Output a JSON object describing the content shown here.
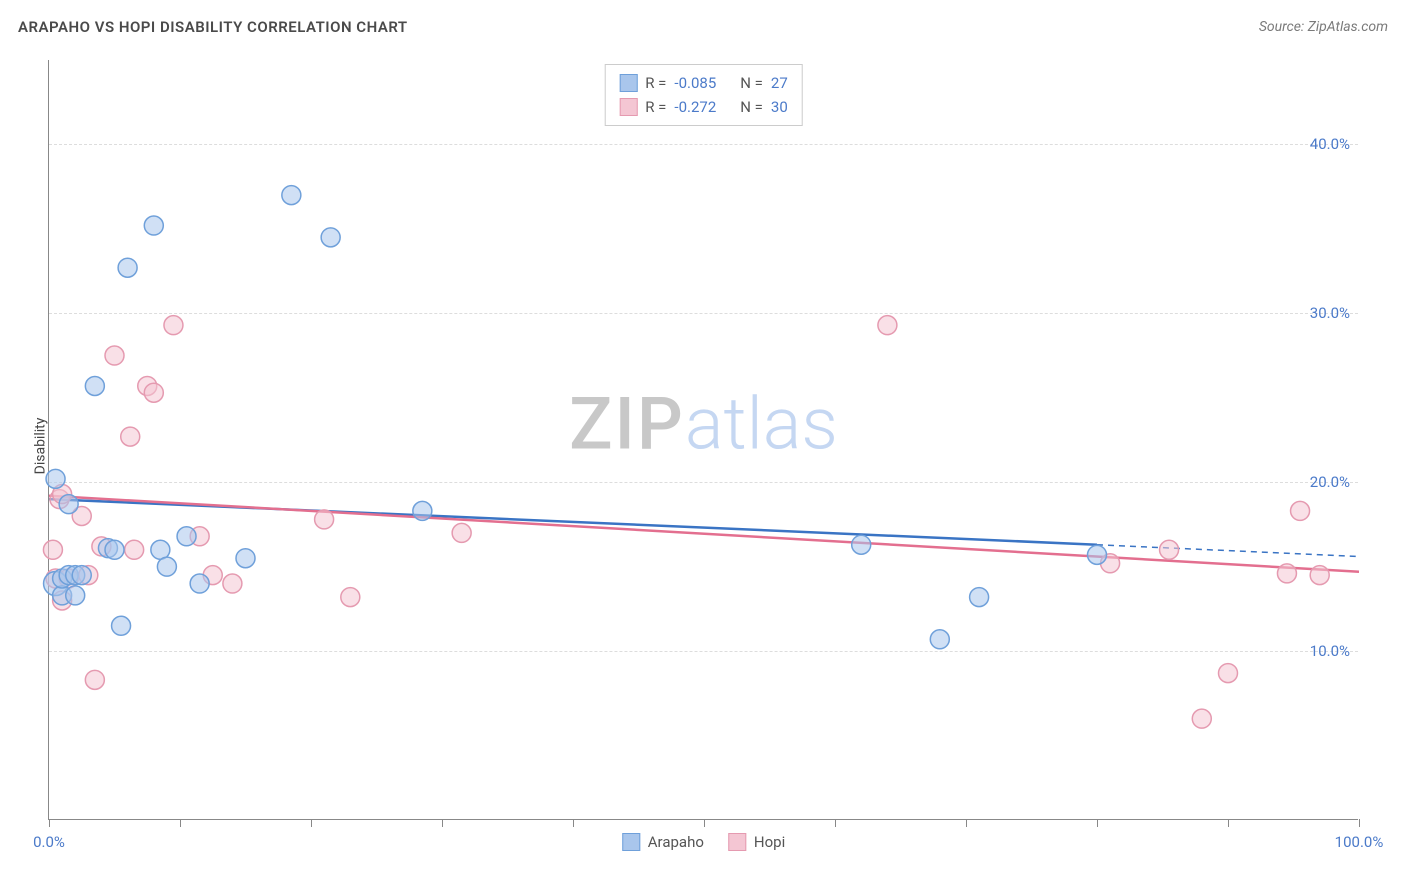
{
  "header": {
    "title": "ARAPAHO VS HOPI DISABILITY CORRELATION CHART",
    "source": "Source: ZipAtlas.com"
  },
  "ylabel": "Disability",
  "watermark": {
    "zip": "ZIP",
    "atlas": "atlas"
  },
  "colors": {
    "series_a_fill": "#a9c6ec",
    "series_a_stroke": "#6fa0da",
    "series_a_line": "#3a74c4",
    "series_b_fill": "#f4c6d3",
    "series_b_stroke": "#e59ab0",
    "series_b_line": "#e36f8f",
    "grid": "#dddddd",
    "axis": "#888888",
    "tick_text": "#4b7ac9",
    "text": "#555555",
    "bg": "#ffffff"
  },
  "chart": {
    "type": "scatter",
    "xlim": [
      0,
      100
    ],
    "ylim": [
      0,
      45
    ],
    "xtick_positions": [
      0,
      10,
      20,
      30,
      40,
      50,
      60,
      70,
      80,
      90,
      100
    ],
    "xtick_labels": {
      "0": "0.0%",
      "100": "100.0%"
    },
    "yticks": [
      10,
      20,
      30,
      40
    ],
    "ytick_labels": {
      "10": "10.0%",
      "20": "20.0%",
      "30": "30.0%",
      "40": "40.0%"
    },
    "marker_radius": 9.5,
    "marker_radius_large": 12,
    "line_width": 2.5,
    "dash_pattern": "6,5"
  },
  "legend_top": {
    "rows": [
      {
        "swatch": "a",
        "r_label": "R =",
        "r": "-0.085",
        "n_label": "N =",
        "n": "27"
      },
      {
        "swatch": "b",
        "r_label": "R =",
        "r": "-0.272",
        "n_label": "N =",
        "n": "30"
      }
    ]
  },
  "legend_bottom": {
    "items": [
      {
        "swatch": "a",
        "label": "Arapaho"
      },
      {
        "swatch": "b",
        "label": "Hopi"
      }
    ]
  },
  "series_a": {
    "name": "Arapaho",
    "trend": {
      "x1": 0,
      "y1": 19.0,
      "x2": 80,
      "y2": 16.3,
      "x2_ext": 100,
      "y2_ext": 15.6
    },
    "points": [
      {
        "x": 0.5,
        "y": 20.2
      },
      {
        "x": 0.5,
        "y": 14.0,
        "large": true
      },
      {
        "x": 1.0,
        "y": 13.3
      },
      {
        "x": 1.0,
        "y": 14.3
      },
      {
        "x": 1.5,
        "y": 18.7
      },
      {
        "x": 1.5,
        "y": 14.5
      },
      {
        "x": 2.0,
        "y": 14.5
      },
      {
        "x": 2.0,
        "y": 13.3
      },
      {
        "x": 2.5,
        "y": 14.5
      },
      {
        "x": 3.5,
        "y": 25.7
      },
      {
        "x": 4.5,
        "y": 16.1
      },
      {
        "x": 5.0,
        "y": 16.0
      },
      {
        "x": 5.5,
        "y": 11.5
      },
      {
        "x": 6.0,
        "y": 32.7
      },
      {
        "x": 8.0,
        "y": 35.2
      },
      {
        "x": 8.5,
        "y": 16.0
      },
      {
        "x": 9.0,
        "y": 15.0
      },
      {
        "x": 10.5,
        "y": 16.8
      },
      {
        "x": 11.5,
        "y": 14.0
      },
      {
        "x": 15.0,
        "y": 15.5
      },
      {
        "x": 18.5,
        "y": 37.0
      },
      {
        "x": 21.5,
        "y": 34.5
      },
      {
        "x": 28.5,
        "y": 18.3
      },
      {
        "x": 62.0,
        "y": 16.3
      },
      {
        "x": 68.0,
        "y": 10.7
      },
      {
        "x": 71.0,
        "y": 13.2
      },
      {
        "x": 80.0,
        "y": 15.7
      }
    ]
  },
  "series_b": {
    "name": "Hopi",
    "trend": {
      "x1": 0,
      "y1": 19.2,
      "x2": 100,
      "y2": 14.7
    },
    "points": [
      {
        "x": 0.3,
        "y": 16.0
      },
      {
        "x": 0.5,
        "y": 14.3
      },
      {
        "x": 0.8,
        "y": 19.0
      },
      {
        "x": 1.0,
        "y": 13.0
      },
      {
        "x": 1.0,
        "y": 19.3
      },
      {
        "x": 1.5,
        "y": 14.3
      },
      {
        "x": 2.5,
        "y": 18.0
      },
      {
        "x": 3.0,
        "y": 14.5
      },
      {
        "x": 3.5,
        "y": 8.3
      },
      {
        "x": 4.0,
        "y": 16.2
      },
      {
        "x": 5.0,
        "y": 27.5
      },
      {
        "x": 6.2,
        "y": 22.7
      },
      {
        "x": 6.5,
        "y": 16.0
      },
      {
        "x": 7.5,
        "y": 25.7
      },
      {
        "x": 8.0,
        "y": 25.3
      },
      {
        "x": 9.5,
        "y": 29.3
      },
      {
        "x": 11.5,
        "y": 16.8
      },
      {
        "x": 12.5,
        "y": 14.5
      },
      {
        "x": 14.0,
        "y": 14.0
      },
      {
        "x": 21.0,
        "y": 17.8
      },
      {
        "x": 23.0,
        "y": 13.2
      },
      {
        "x": 31.5,
        "y": 17.0
      },
      {
        "x": 64.0,
        "y": 29.3
      },
      {
        "x": 81.0,
        "y": 15.2
      },
      {
        "x": 85.5,
        "y": 16.0
      },
      {
        "x": 88.0,
        "y": 6.0
      },
      {
        "x": 90.0,
        "y": 8.7
      },
      {
        "x": 94.5,
        "y": 14.6
      },
      {
        "x": 95.5,
        "y": 18.3
      },
      {
        "x": 97.0,
        "y": 14.5
      }
    ]
  }
}
